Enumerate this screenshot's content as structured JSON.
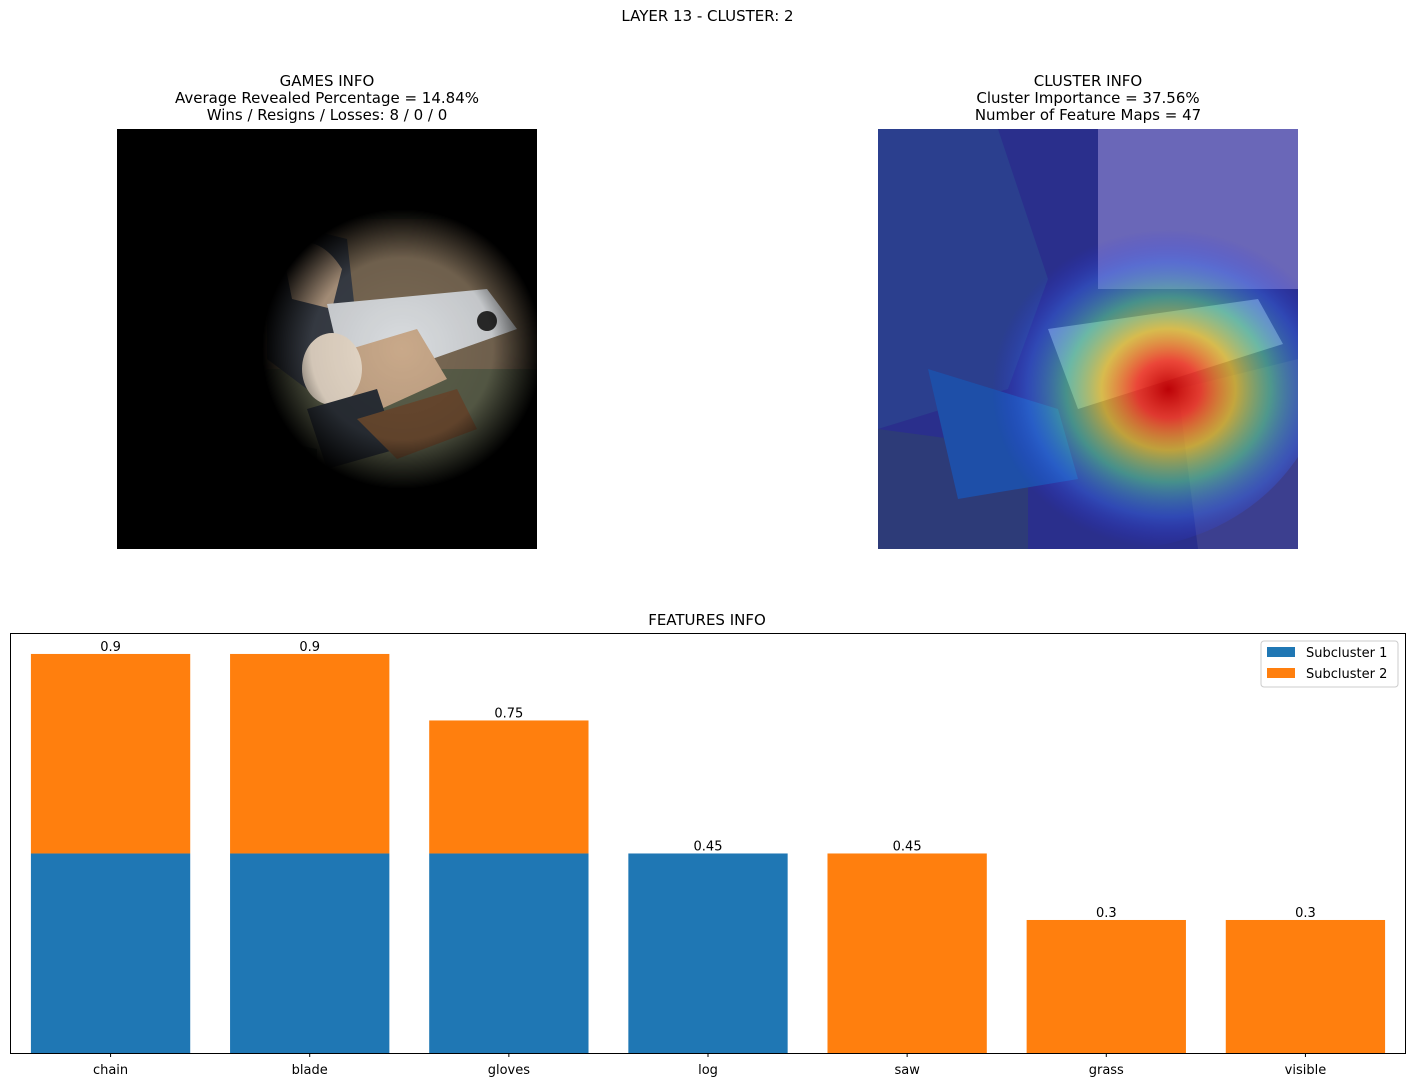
{
  "suptitle": "LAYER 13 - CLUSTER: 2",
  "games_info": {
    "title": "GAMES INFO",
    "line1": "Average Revealed Percentage = 14.84%",
    "line2": "Wins / Resigns / Losses: 8 / 0 / 0"
  },
  "cluster_info": {
    "title": "CLUSTER INFO",
    "line1": "Cluster Importance = 37.56%",
    "line2": "Number of Feature Maps = 47"
  },
  "colors": {
    "subcluster_1": "#1f77b4",
    "subcluster_2": "#ff7f0e"
  },
  "chart_data": {
    "type": "bar",
    "stacked": true,
    "title": "FEATURES INFO",
    "categories": [
      "chain",
      "blade",
      "gloves",
      "log",
      "saw",
      "grass",
      "visible"
    ],
    "series": [
      {
        "name": "Subcluster 1",
        "values": [
          0.45,
          0.45,
          0.45,
          0.45,
          0,
          0,
          0
        ]
      },
      {
        "name": "Subcluster 2",
        "values": [
          0.45,
          0.45,
          0.3,
          0,
          0.45,
          0.3,
          0.3
        ]
      }
    ],
    "totals": [
      "0.9",
      "0.9",
      "0.75",
      "0.45",
      "0.45",
      "0.3",
      "0.3"
    ],
    "ylim": [
      0,
      0.945
    ],
    "yticks_visible": false,
    "grid": false,
    "legend": "top-right"
  }
}
